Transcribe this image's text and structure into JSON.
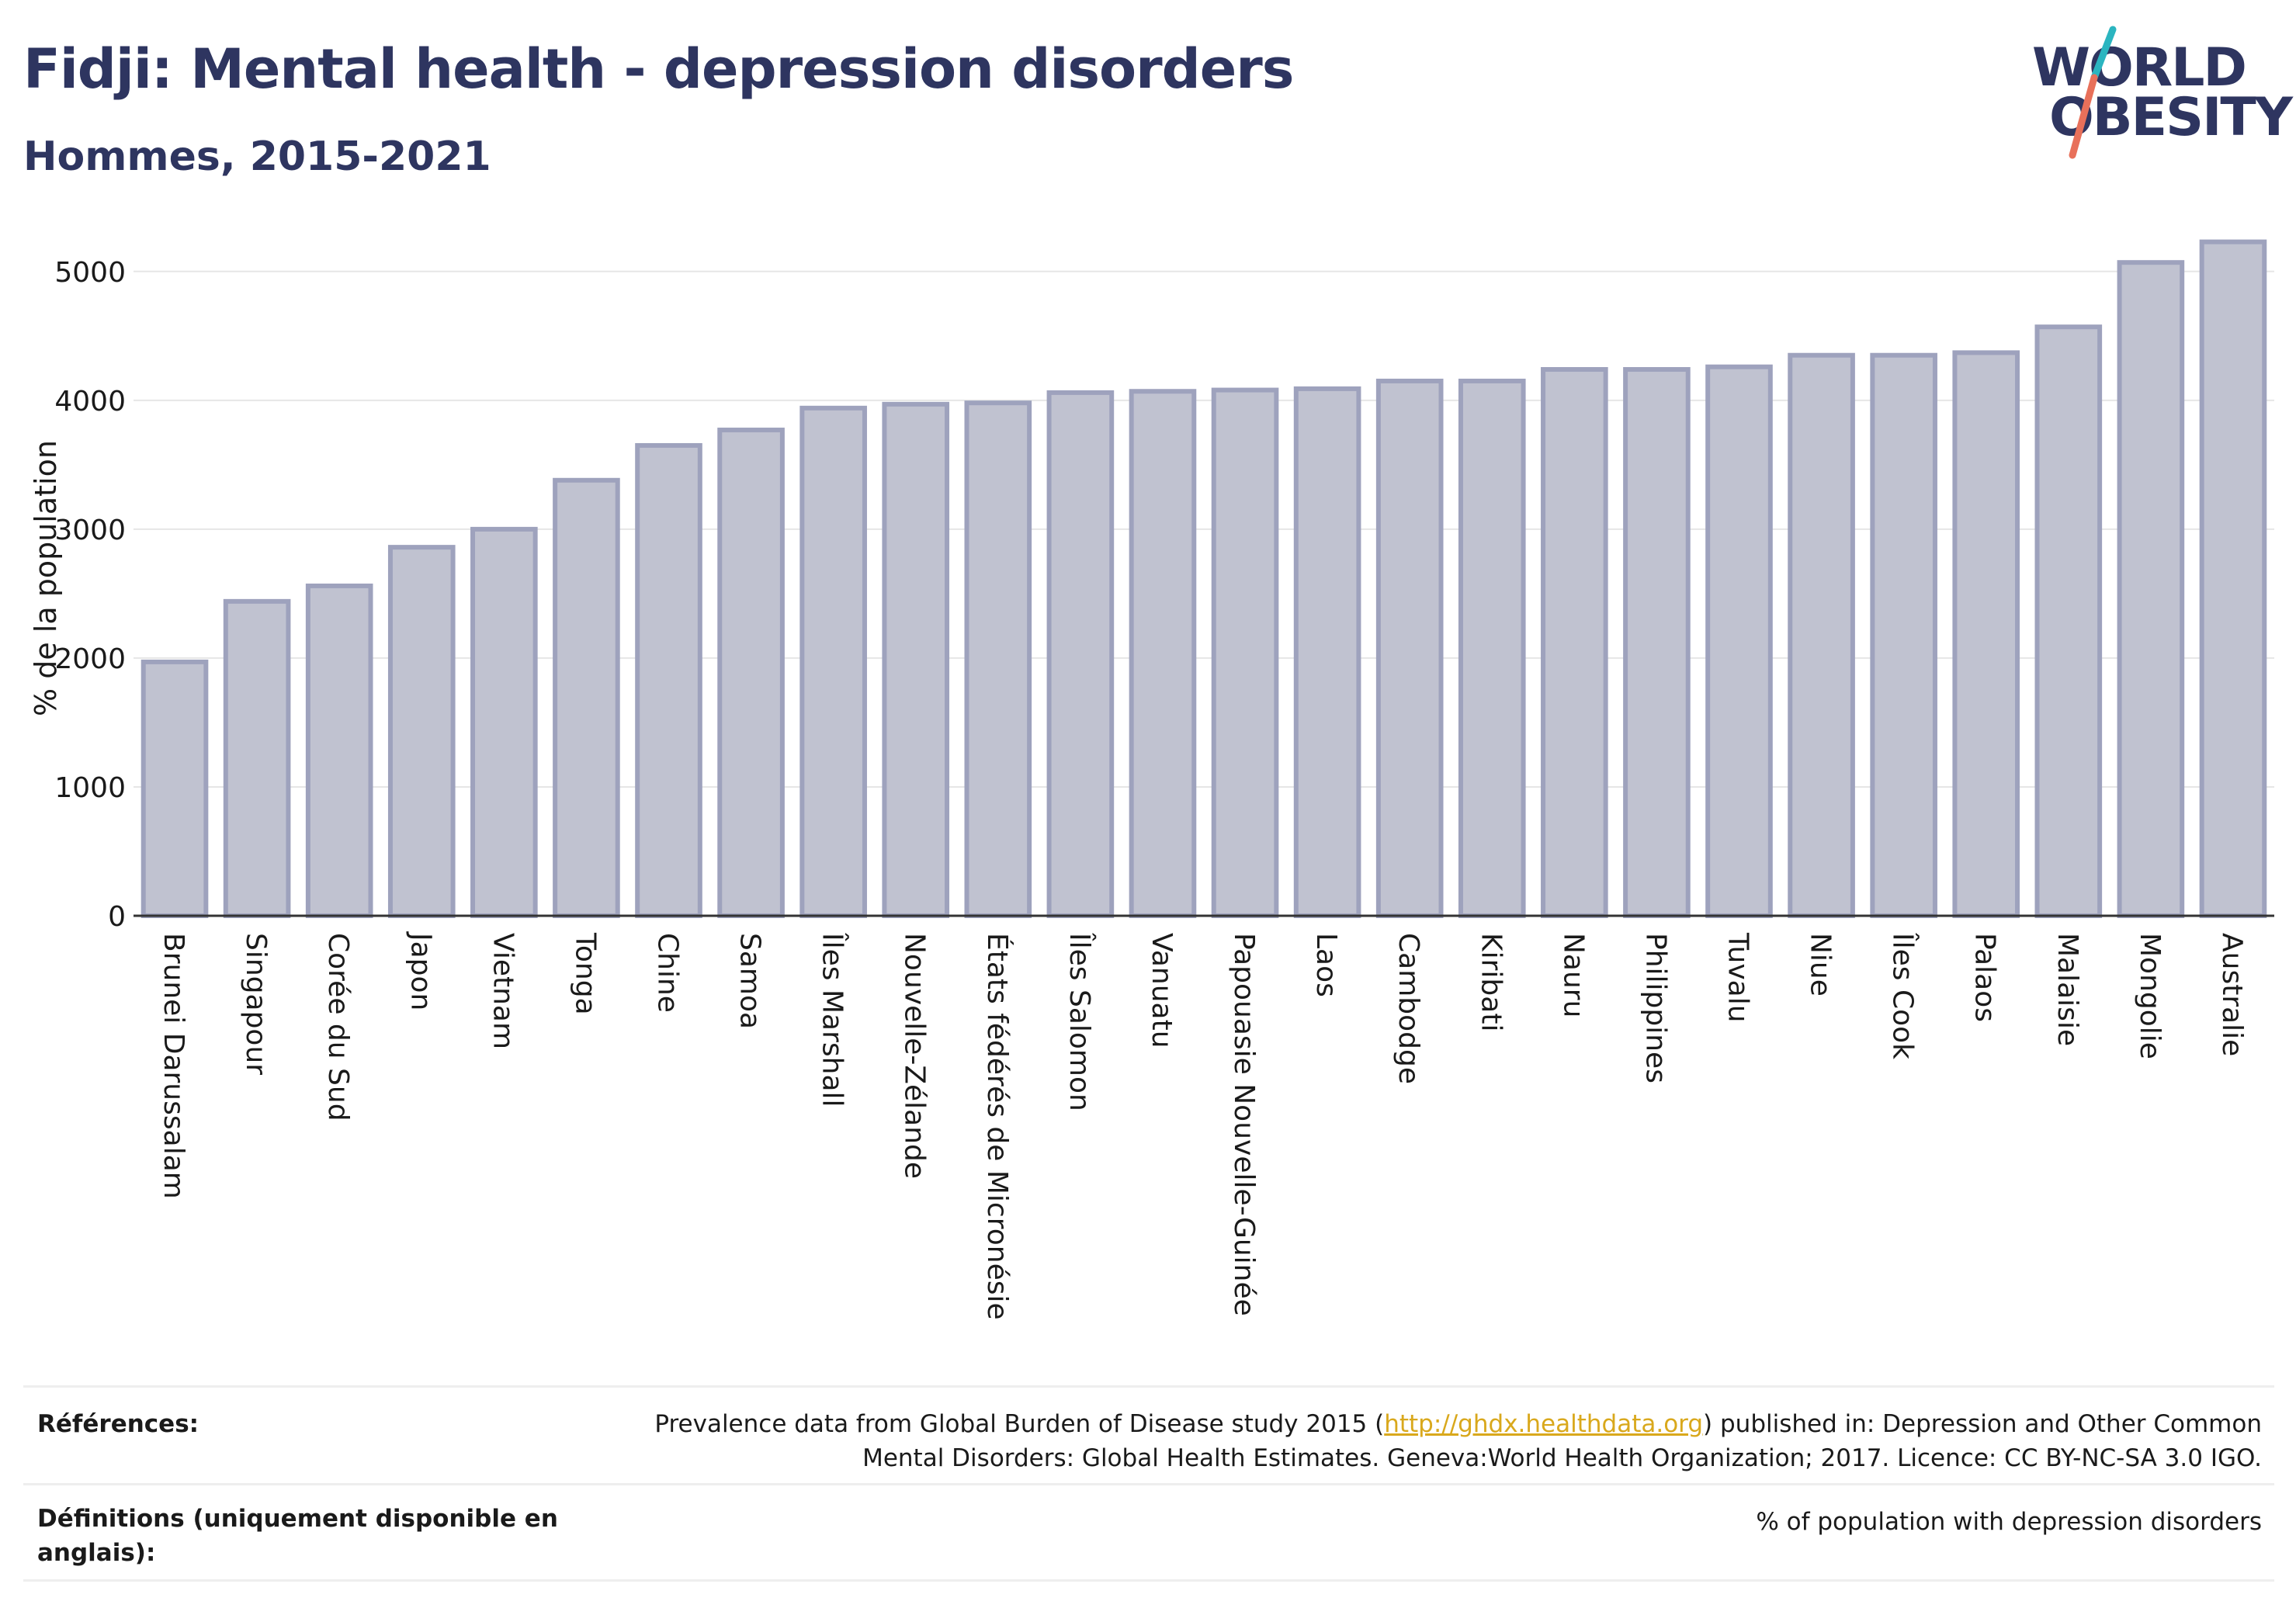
{
  "title": "Fidji: Mental health - depression disorders",
  "subtitle": "Hommes, 2015-2021",
  "logo": {
    "line1": "WORLD",
    "line2": "OBESITY",
    "text": "WORLD OBESITY",
    "colors": {
      "text": "#2e3560",
      "slash_top": "#2bb5c0",
      "slash_bottom": "#e8705a"
    }
  },
  "colors": {
    "bar_fill": "#c0c2d0",
    "bar_stroke": "#9ea2bd",
    "grid": "#e6e6e6",
    "axis": "#333333"
  },
  "chart_data": {
    "type": "bar",
    "ylabel": "% de la population",
    "xlabel": "",
    "ylim": [
      0,
      5300
    ],
    "yticks": [
      0,
      1000,
      2000,
      3000,
      4000,
      5000
    ],
    "grid": true,
    "categories": [
      "Brunei Darussalam",
      "Singapour",
      "Corée du Sud",
      "Japon",
      "Vietnam",
      "Tonga",
      "Chine",
      "Samoa",
      "Îles Marshall",
      "Nouvelle-Zélande",
      "États fédérés de Micronésie",
      "Îles Salomon",
      "Vanuatu",
      "Papouasie Nouvelle-Guinée",
      "Laos",
      "Cambodge",
      "Kiribati",
      "Nauru",
      "Philippines",
      "Tuvalu",
      "Niue",
      "Îles Cook",
      "Palaos",
      "Malaisie",
      "Mongolie",
      "Australie"
    ],
    "values": [
      1970,
      2440,
      2560,
      2860,
      3000,
      3380,
      3650,
      3770,
      3940,
      3970,
      3980,
      4060,
      4070,
      4080,
      4090,
      4150,
      4150,
      4240,
      4240,
      4260,
      4350,
      4350,
      4370,
      4570,
      5070,
      5230
    ]
  },
  "footer": {
    "references_label": "Références:",
    "references_text_before": "Prevalence data from Global Burden of Disease study 2015 (",
    "references_link": "http://ghdx.healthdata.org",
    "references_text_after": ") published in: Depression and Other Common",
    "references_line2": "Mental Disorders: Global Health Estimates. Geneva:World Health Organization; 2017. Licence: CC BY-NC-SA 3.0 IGO.",
    "definitions_label": "Définitions (uniquement disponible en anglais):",
    "definitions_text": "% of population with depression disorders"
  }
}
